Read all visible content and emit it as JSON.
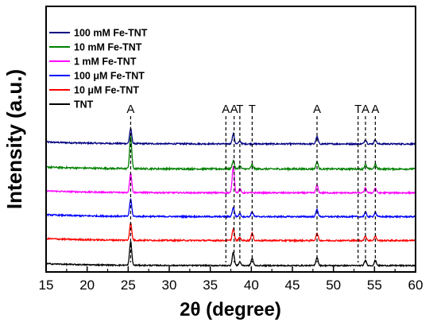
{
  "chart_data": {
    "type": "line",
    "xlabel_main": "2θ",
    "xlabel_rest": " (degree)",
    "ylabel": "Intensity (a.u.)",
    "xlim": [
      15,
      60
    ],
    "xticks": [
      15,
      20,
      25,
      30,
      35,
      40,
      45,
      50,
      55,
      60
    ],
    "grid": false,
    "legend_position": "top-left",
    "series": [
      {
        "name": "100 mM Fe-TNT",
        "color": "#000080",
        "offset": 5.1,
        "noise": 0.06,
        "peaks": [
          [
            25.3,
            0.62
          ],
          [
            37.8,
            0.4
          ],
          [
            38.6,
            0.12
          ],
          [
            48.0,
            0.3
          ],
          [
            53.9,
            0.18
          ],
          [
            55.1,
            0.18
          ]
        ]
      },
      {
        "name": "10 mM Fe-TNT",
        "color": "#008000",
        "offset": 4.05,
        "noise": 0.07,
        "peaks": [
          [
            25.3,
            1.35
          ],
          [
            37.8,
            0.35
          ],
          [
            38.6,
            0.12
          ],
          [
            40.1,
            0.18
          ],
          [
            48.0,
            0.3
          ],
          [
            53.9,
            0.18
          ],
          [
            55.1,
            0.18
          ]
        ]
      },
      {
        "name": "1 mM Fe-TNT",
        "color": "#ff00ff",
        "offset": 3.05,
        "noise": 0.06,
        "peaks": [
          [
            25.3,
            0.82
          ],
          [
            37.8,
            1.1
          ],
          [
            38.6,
            0.15
          ],
          [
            48.0,
            0.32
          ],
          [
            53.9,
            0.2
          ],
          [
            55.1,
            0.2
          ]
        ]
      },
      {
        "name": "100 μM Fe-TNT",
        "color": "#0000ff",
        "offset": 2.05,
        "noise": 0.06,
        "peaks": [
          [
            25.3,
            0.72
          ],
          [
            37.8,
            0.38
          ],
          [
            38.6,
            0.12
          ],
          [
            40.1,
            0.2
          ],
          [
            48.0,
            0.3
          ],
          [
            53.9,
            0.18
          ],
          [
            55.1,
            0.18
          ]
        ]
      },
      {
        "name": "10 μM Fe-TNT",
        "color": "#ff0000",
        "offset": 1.05,
        "noise": 0.06,
        "peaks": [
          [
            25.3,
            0.72
          ],
          [
            37.8,
            0.48
          ],
          [
            38.6,
            0.12
          ],
          [
            40.1,
            0.3
          ],
          [
            48.0,
            0.3
          ],
          [
            53.9,
            0.18
          ],
          [
            55.1,
            0.18
          ]
        ]
      },
      {
        "name": "TNT",
        "color": "#000000",
        "offset": 0.0,
        "noise": 0.05,
        "peaks": [
          [
            25.3,
            1.0
          ],
          [
            37.8,
            0.55
          ],
          [
            38.6,
            0.15
          ],
          [
            40.1,
            0.3
          ],
          [
            48.0,
            0.35
          ],
          [
            53.9,
            0.22
          ],
          [
            55.1,
            0.22
          ]
        ]
      }
    ],
    "reference_lines": [
      {
        "x": 25.3,
        "label": "A"
      },
      {
        "x": 36.9,
        "label": "A"
      },
      {
        "x": 37.9,
        "label": "A"
      },
      {
        "x": 38.6,
        "label": "T"
      },
      {
        "x": 40.1,
        "label": "T"
      },
      {
        "x": 48.0,
        "label": "A"
      },
      {
        "x": 53.0,
        "label": "T"
      },
      {
        "x": 53.9,
        "label": "A"
      },
      {
        "x": 55.1,
        "label": "A"
      }
    ]
  }
}
